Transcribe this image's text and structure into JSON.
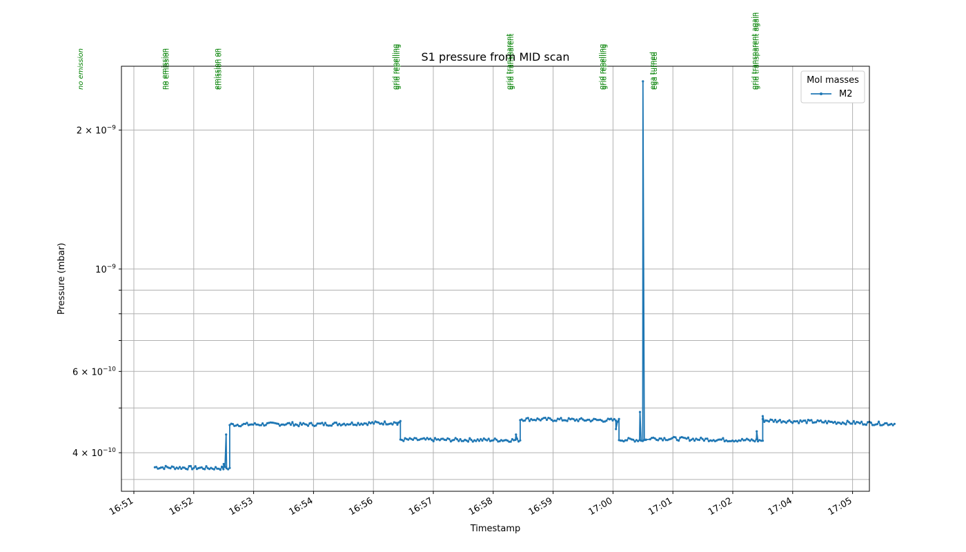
{
  "chart_data": {
    "type": "line",
    "title": "S1 pressure from MID scan",
    "xlabel": "Timestamp",
    "ylabel": "Pressure (mbar)",
    "y_scale": "log",
    "grid": true,
    "legend": {
      "title": "Mol masses",
      "placement": "upper right"
    },
    "x_tick_labels": [
      "16:51",
      "16:52",
      "16:53",
      "16:54",
      "16:56",
      "16:57",
      "16:58",
      "16:59",
      "17:00",
      "17:01",
      "17:02",
      "17:04",
      "17:05"
    ],
    "y_ticks": [
      {
        "label": "4 × 10",
        "exp": "−10",
        "value": 4e-10
      },
      {
        "label": "6 × 10",
        "exp": "−10",
        "value": 6e-10
      },
      {
        "label": "10",
        "exp": "−9",
        "value": 1e-09
      },
      {
        "label": "2 × 10",
        "exp": "−9",
        "value": 2e-09
      }
    ],
    "ylim": [
      3.3e-10,
      2.75e-09
    ],
    "series": [
      {
        "name": "M2",
        "color": "#1f77b4",
        "segments": [
          {
            "x": [
              0.35,
              1.6
            ],
            "y": [
              3.72e-10,
              3.7e-10
            ]
          },
          {
            "x": [
              1.6,
              2.7
            ],
            "y": [
              4.6e-10,
              4.62e-10
            ]
          },
          {
            "x": [
              2.7,
              4.45
            ],
            "y": [
              4.6e-10,
              4.65e-10
            ]
          },
          {
            "x": [
              4.45,
              6.45
            ],
            "y": [
              4.27e-10,
              4.26e-10
            ]
          },
          {
            "x": [
              6.45,
              8.1
            ],
            "y": [
              4.73e-10,
              4.7e-10
            ]
          },
          {
            "x": [
              8.1,
              8.55
            ],
            "y": [
              4.27e-10,
              4.26e-10
            ]
          },
          {
            "x": [
              8.62,
              10.5
            ],
            "y": [
              4.3e-10,
              4.25e-10
            ]
          },
          {
            "x": [
              10.5,
              12.7
            ],
            "y": [
              4.7e-10,
              4.62e-10
            ]
          }
        ],
        "transitions": [
          {
            "x": 1.5,
            "y": 3.78e-10
          },
          {
            "x": 1.54,
            "y": 4.38e-10
          },
          {
            "x": 4.4,
            "y": 4.6e-10
          },
          {
            "x": 6.38,
            "y": 4.38e-10
          },
          {
            "x": 7.95,
            "y": 4.73e-10
          },
          {
            "x": 8.05,
            "y": 4.5e-10
          },
          {
            "x": 8.45,
            "y": 4.9e-10
          },
          {
            "x": 8.5,
            "y": 2.55e-09
          },
          {
            "x": 8.55,
            "y": 4.27e-10
          },
          {
            "x": 10.4,
            "y": 4.45e-10
          },
          {
            "x": 10.5,
            "y": 4.8e-10
          }
        ]
      }
    ],
    "annotations": [
      {
        "text": "no emission",
        "x": -0.85,
        "style": "italic"
      },
      {
        "text": "no emission",
        "x": 0.55,
        "style": "normal"
      },
      {
        "text": "emission on",
        "x": 1.42,
        "style": "normal"
      },
      {
        "text": "grid repelling",
        "x": 4.4,
        "style": "normal"
      },
      {
        "text": "grid transparent",
        "x": 6.3,
        "style": "normal"
      },
      {
        "text": "grid repelling",
        "x": 7.85,
        "style": "normal"
      },
      {
        "text": "ega turned",
        "x": 8.7,
        "style": "normal"
      },
      {
        "text": "grid transparent again",
        "x": 10.4,
        "style": "normal"
      }
    ]
  }
}
